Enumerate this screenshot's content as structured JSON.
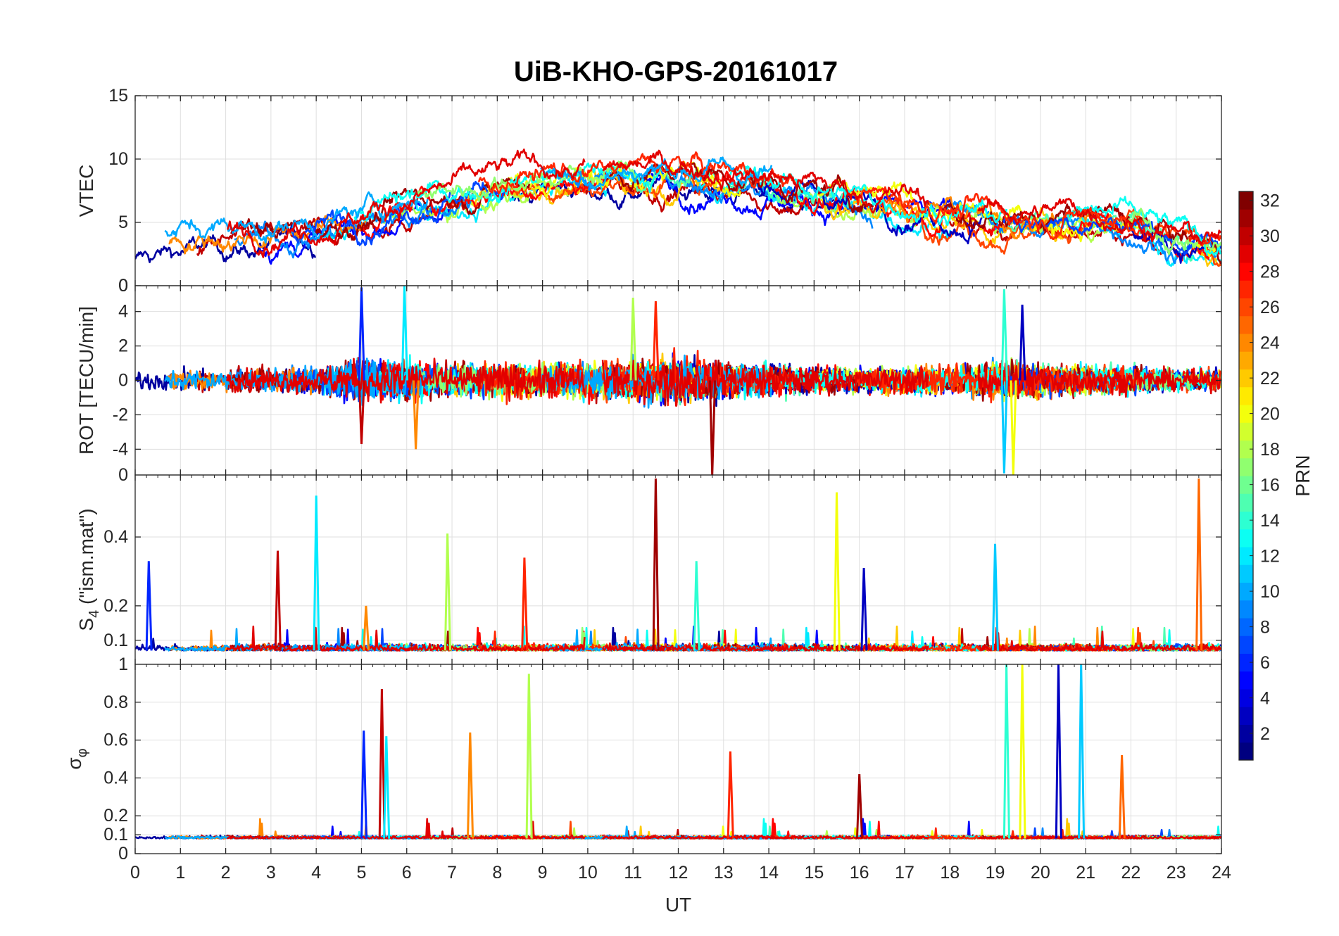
{
  "chart_data": [
    {
      "type": "line",
      "title": "UiB-KHO-GPS-20161017",
      "ylabel": "VTEC",
      "xlabel": "",
      "xlim": [
        0,
        24
      ],
      "ylim": [
        0,
        15
      ],
      "yticks": [
        0,
        5,
        10,
        15
      ],
      "ytick_labels": [
        "0",
        "5",
        "10",
        "15"
      ],
      "grid": true,
      "series_description_note": "",
      "envelope": {
        "x": [
          0,
          1,
          2,
          3,
          4,
          5,
          6,
          7,
          8,
          9,
          10,
          11,
          12,
          13,
          14,
          15,
          16,
          17,
          18,
          19,
          20,
          21,
          22,
          23,
          24
        ],
        "y": [
          2.8,
          3.5,
          3.8,
          4.0,
          4.3,
          5.0,
          6.2,
          7.0,
          7.8,
          8.5,
          8.3,
          8.5,
          8.8,
          8.5,
          8.0,
          7.3,
          6.5,
          6.3,
          5.8,
          5.0,
          5.0,
          5.2,
          4.8,
          3.5,
          2.6
        ]
      }
    },
    {
      "type": "line",
      "ylabel": "ROT [TECU/min]",
      "xlabel": "",
      "xlim": [
        0,
        24
      ],
      "ylim": [
        -5.5,
        5.5
      ],
      "yticks": [
        -4,
        -2,
        0,
        2,
        4
      ],
      "ytick_labels": [
        "-4",
        "-2",
        "0",
        "2",
        "4"
      ],
      "corner_label": "0",
      "grid": true,
      "envelope": {
        "x": [
          0,
          1,
          2,
          3,
          4,
          5,
          6,
          7,
          8,
          9,
          10,
          11,
          12,
          13,
          14,
          15,
          16,
          17,
          18,
          19,
          20,
          21,
          22,
          23,
          24
        ],
        "y": [
          0.8,
          0.9,
          0.8,
          0.9,
          1.0,
          1.6,
          1.5,
          1.2,
          1.3,
          1.3,
          1.4,
          1.5,
          1.9,
          1.3,
          1.2,
          1.0,
          0.9,
          1.0,
          1.0,
          1.4,
          1.3,
          1.1,
          1.0,
          0.8,
          0.8
        ]
      },
      "spikes": [
        {
          "x": 5.0,
          "y": 5.4
        },
        {
          "x": 5.0,
          "y": -3.7
        },
        {
          "x": 5.95,
          "y": 5.5
        },
        {
          "x": 6.2,
          "y": -4.0
        },
        {
          "x": 11.0,
          "y": 4.8
        },
        {
          "x": 11.5,
          "y": 4.6
        },
        {
          "x": 12.75,
          "y": -5.5
        },
        {
          "x": 19.2,
          "y": 5.3
        },
        {
          "x": 19.4,
          "y": -5.5
        },
        {
          "x": 19.6,
          "y": 4.4
        },
        {
          "x": 19.2,
          "y": -5.4
        }
      ]
    },
    {
      "type": "line",
      "ylabel": "S4 (\"ism.mat\")",
      "ylabel_main": "S",
      "ylabel_sub": "4",
      "ylabel_rest": " (\"ism.mat\")",
      "xlabel": "",
      "xlim": [
        0,
        24
      ],
      "ylim": [
        0.03,
        0.58
      ],
      "yticks": [
        0.1,
        0.2,
        0.4
      ],
      "ytick_labels": [
        "0.1",
        "0.2",
        "0.4"
      ],
      "corner_label": "0",
      "grid": true,
      "baseline": 0.07,
      "spikes": [
        {
          "x": 0.3,
          "y": 0.33
        },
        {
          "x": 3.15,
          "y": 0.36
        },
        {
          "x": 4.0,
          "y": 0.52
        },
        {
          "x": 5.1,
          "y": 0.2
        },
        {
          "x": 6.9,
          "y": 0.41
        },
        {
          "x": 8.6,
          "y": 0.34
        },
        {
          "x": 11.5,
          "y": 0.57
        },
        {
          "x": 12.4,
          "y": 0.33
        },
        {
          "x": 15.5,
          "y": 0.53
        },
        {
          "x": 16.1,
          "y": 0.31
        },
        {
          "x": 19.0,
          "y": 0.38
        },
        {
          "x": 23.5,
          "y": 0.57
        }
      ]
    },
    {
      "type": "line",
      "ylabel": "σφ",
      "ylabel_main": "σ",
      "ylabel_sub": "φ",
      "xlabel": "UT",
      "xlim": [
        0,
        24
      ],
      "ylim": [
        0,
        1
      ],
      "xticks": [
        0,
        1,
        2,
        3,
        4,
        5,
        6,
        7,
        8,
        9,
        10,
        11,
        12,
        13,
        14,
        15,
        16,
        17,
        18,
        19,
        20,
        21,
        22,
        23,
        24
      ],
      "xtick_labels": [
        "0",
        "1",
        "2",
        "3",
        "4",
        "5",
        "6",
        "7",
        "8",
        "9",
        "10",
        "11",
        "12",
        "13",
        "14",
        "15",
        "16",
        "17",
        "18",
        "19",
        "20",
        "21",
        "22",
        "23",
        "24"
      ],
      "yticks": [
        0,
        0.1,
        0.2,
        0.4,
        0.6,
        0.8
      ],
      "ytick_labels": [
        "0",
        "0.1",
        "0.2",
        "0.4",
        "0.6",
        "0.8"
      ],
      "corner_label": "1",
      "grid": true,
      "baseline": 0.08,
      "spikes": [
        {
          "x": 5.05,
          "y": 0.65
        },
        {
          "x": 5.45,
          "y": 0.87
        },
        {
          "x": 5.55,
          "y": 0.62
        },
        {
          "x": 7.4,
          "y": 0.64
        },
        {
          "x": 8.7,
          "y": 0.95
        },
        {
          "x": 13.15,
          "y": 0.54
        },
        {
          "x": 16.0,
          "y": 0.42
        },
        {
          "x": 19.25,
          "y": 1.0
        },
        {
          "x": 19.6,
          "y": 1.0
        },
        {
          "x": 20.4,
          "y": 1.0
        },
        {
          "x": 20.9,
          "y": 1.0
        },
        {
          "x": 21.8,
          "y": 0.52
        }
      ]
    }
  ],
  "colorbar": {
    "label": "PRN",
    "min": 1,
    "max": 32,
    "ticks": [
      2,
      4,
      6,
      8,
      10,
      12,
      14,
      16,
      18,
      20,
      22,
      24,
      26,
      28,
      30,
      32
    ],
    "tick_labels": [
      "2",
      "4",
      "6",
      "8",
      "10",
      "12",
      "14",
      "16",
      "18",
      "20",
      "22",
      "24",
      "26",
      "28",
      "30",
      "32"
    ],
    "colormap": "jet"
  }
}
